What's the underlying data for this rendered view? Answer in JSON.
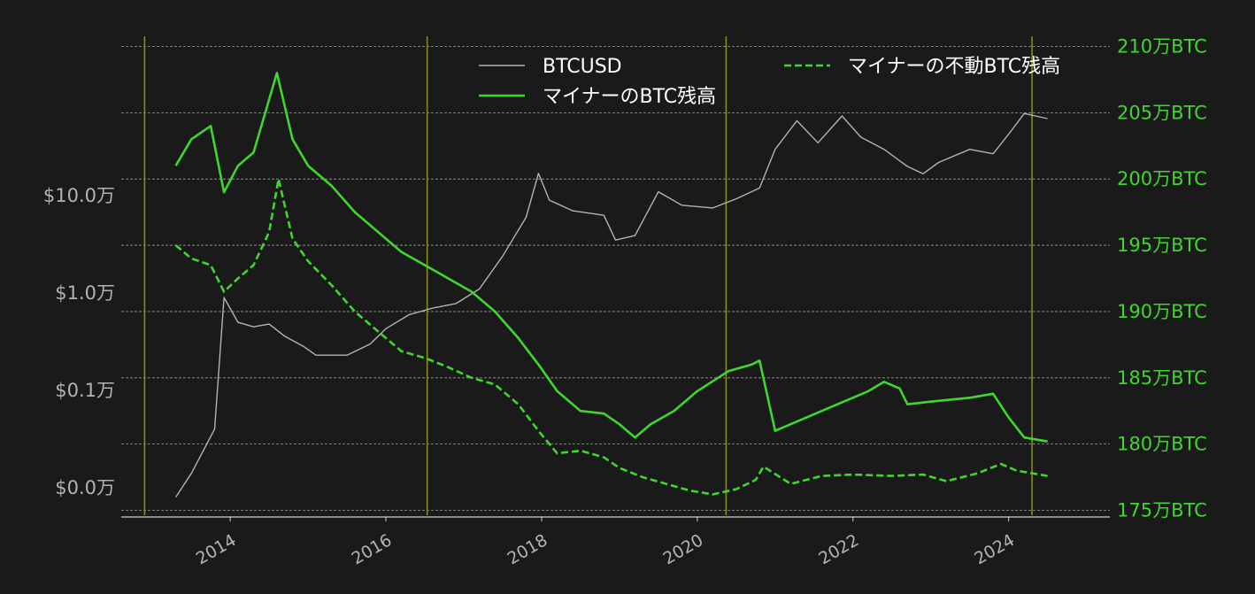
{
  "colors": {
    "background": "#1a1a1a",
    "btcusd": "#b3b3b3",
    "miner_balance": "#3fd62e",
    "miner_immobile": "#3fd62e",
    "halving_line": "#8a8a20",
    "grid": "#9a9a9a",
    "left_axis_text": "#b3b3b3",
    "right_axis_text": "#3fd62e",
    "legend_text": "#ffffff"
  },
  "chart_data": {
    "type": "line",
    "title": "",
    "x_axis": {
      "tick_labels": [
        "2014",
        "2016",
        "2018",
        "2020",
        "2022",
        "2024"
      ],
      "ticks": [
        2014,
        2016,
        2018,
        2020,
        2022,
        2024
      ],
      "range": [
        2012.6,
        2025.3
      ]
    },
    "y_left": {
      "scale": "log",
      "tick_labels": [
        "$0.0万",
        "$0.1万",
        "$1.0万",
        "$10.0万"
      ],
      "ticks": [
        10,
        100,
        1000,
        10000
      ],
      "range": [
        5,
        400000
      ]
    },
    "y_right": {
      "tick_labels": [
        "175万BTC",
        "180万BTC",
        "185万BTC",
        "190万BTC",
        "195万BTC",
        "200万BTC",
        "205万BTC",
        "210万BTC"
      ],
      "ticks": [
        175,
        180,
        185,
        190,
        195,
        200,
        205,
        210
      ],
      "range": [
        174.5,
        210.5
      ]
    },
    "halvings": [
      2012.9,
      2016.53,
      2020.37,
      2024.3
    ],
    "legend": {
      "placement": "top",
      "entries": [
        {
          "label": "BTCUSD",
          "style": "solid-thin"
        },
        {
          "label": "マイナーのBTC残高",
          "style": "solid"
        },
        {
          "label": "マイナーの不動BTC残高",
          "style": "dashed"
        }
      ]
    },
    "series": [
      {
        "name": "BTCUSD",
        "axis": "left",
        "x": [
          2013.3,
          2013.5,
          2013.8,
          2013.92,
          2014.1,
          2014.3,
          2014.5,
          2014.7,
          2014.95,
          2015.1,
          2015.5,
          2015.8,
          2016.0,
          2016.3,
          2016.6,
          2016.9,
          2017.2,
          2017.5,
          2017.8,
          2017.96,
          2018.1,
          2018.4,
          2018.8,
          2018.95,
          2019.2,
          2019.5,
          2019.8,
          2020.2,
          2020.5,
          2020.8,
          2021.0,
          2021.28,
          2021.55,
          2021.86,
          2022.1,
          2022.4,
          2022.7,
          2022.9,
          2023.1,
          2023.5,
          2023.8,
          2024.0,
          2024.2,
          2024.5
        ],
        "values": [
          8,
          14,
          40,
          900,
          500,
          450,
          480,
          360,
          280,
          230,
          230,
          300,
          430,
          600,
          700,
          780,
          1100,
          2400,
          6000,
          17000,
          9000,
          7000,
          6300,
          3500,
          3900,
          11000,
          8000,
          7500,
          9300,
          12000,
          30000,
          59000,
          35000,
          66000,
          40000,
          30000,
          20000,
          16800,
          22000,
          30000,
          27000,
          43000,
          70000,
          62000
        ]
      },
      {
        "name": "マイナーのBTC残高",
        "axis": "right",
        "x": [
          2013.3,
          2013.5,
          2013.75,
          2013.92,
          2014.1,
          2014.3,
          2014.5,
          2014.6,
          2014.8,
          2015.0,
          2015.3,
          2015.6,
          2015.9,
          2016.2,
          2016.5,
          2016.8,
          2017.1,
          2017.4,
          2017.7,
          2017.96,
          2018.2,
          2018.5,
          2018.8,
          2019.0,
          2019.2,
          2019.4,
          2019.7,
          2020.0,
          2020.4,
          2020.7,
          2020.8,
          2021.0,
          2021.4,
          2021.8,
          2022.2,
          2022.4,
          2022.6,
          2022.7,
          2023.0,
          2023.5,
          2023.8,
          2024.0,
          2024.2,
          2024.5
        ],
        "values": [
          201,
          203,
          204,
          199,
          201,
          202,
          206,
          208,
          203,
          201,
          199.5,
          197.5,
          196,
          194.5,
          193.5,
          192.5,
          191.5,
          190,
          188,
          186,
          184,
          182.5,
          182.3,
          181.5,
          180.5,
          181.5,
          182.5,
          184,
          185.5,
          186,
          186.3,
          181,
          182,
          183,
          184,
          184.7,
          184.2,
          183,
          183.2,
          183.5,
          183.8,
          182,
          180.5,
          180.2
        ]
      },
      {
        "name": "マイナーの不動BTC残高",
        "axis": "right",
        "x": [
          2013.3,
          2013.5,
          2013.75,
          2013.92,
          2014.1,
          2014.3,
          2014.5,
          2014.62,
          2014.8,
          2015.0,
          2015.3,
          2015.6,
          2015.9,
          2016.2,
          2016.5,
          2016.8,
          2017.1,
          2017.4,
          2017.7,
          2017.96,
          2018.2,
          2018.5,
          2018.8,
          2019.0,
          2019.3,
          2019.6,
          2019.9,
          2020.2,
          2020.5,
          2020.75,
          2020.85,
          2021.2,
          2021.6,
          2022.0,
          2022.5,
          2022.9,
          2023.2,
          2023.6,
          2023.9,
          2024.1,
          2024.3,
          2024.5
        ],
        "values": [
          195,
          194,
          193.5,
          191.5,
          192.5,
          193.5,
          196,
          200,
          195.5,
          193.8,
          192,
          190,
          188.5,
          187,
          186.5,
          185.8,
          185,
          184.5,
          183,
          181,
          179.3,
          179.5,
          179,
          178.2,
          177.5,
          177,
          176.5,
          176.2,
          176.6,
          177.3,
          178.3,
          177,
          177.6,
          177.7,
          177.6,
          177.7,
          177.2,
          177.8,
          178.5,
          178,
          177.8,
          177.6
        ]
      }
    ]
  }
}
